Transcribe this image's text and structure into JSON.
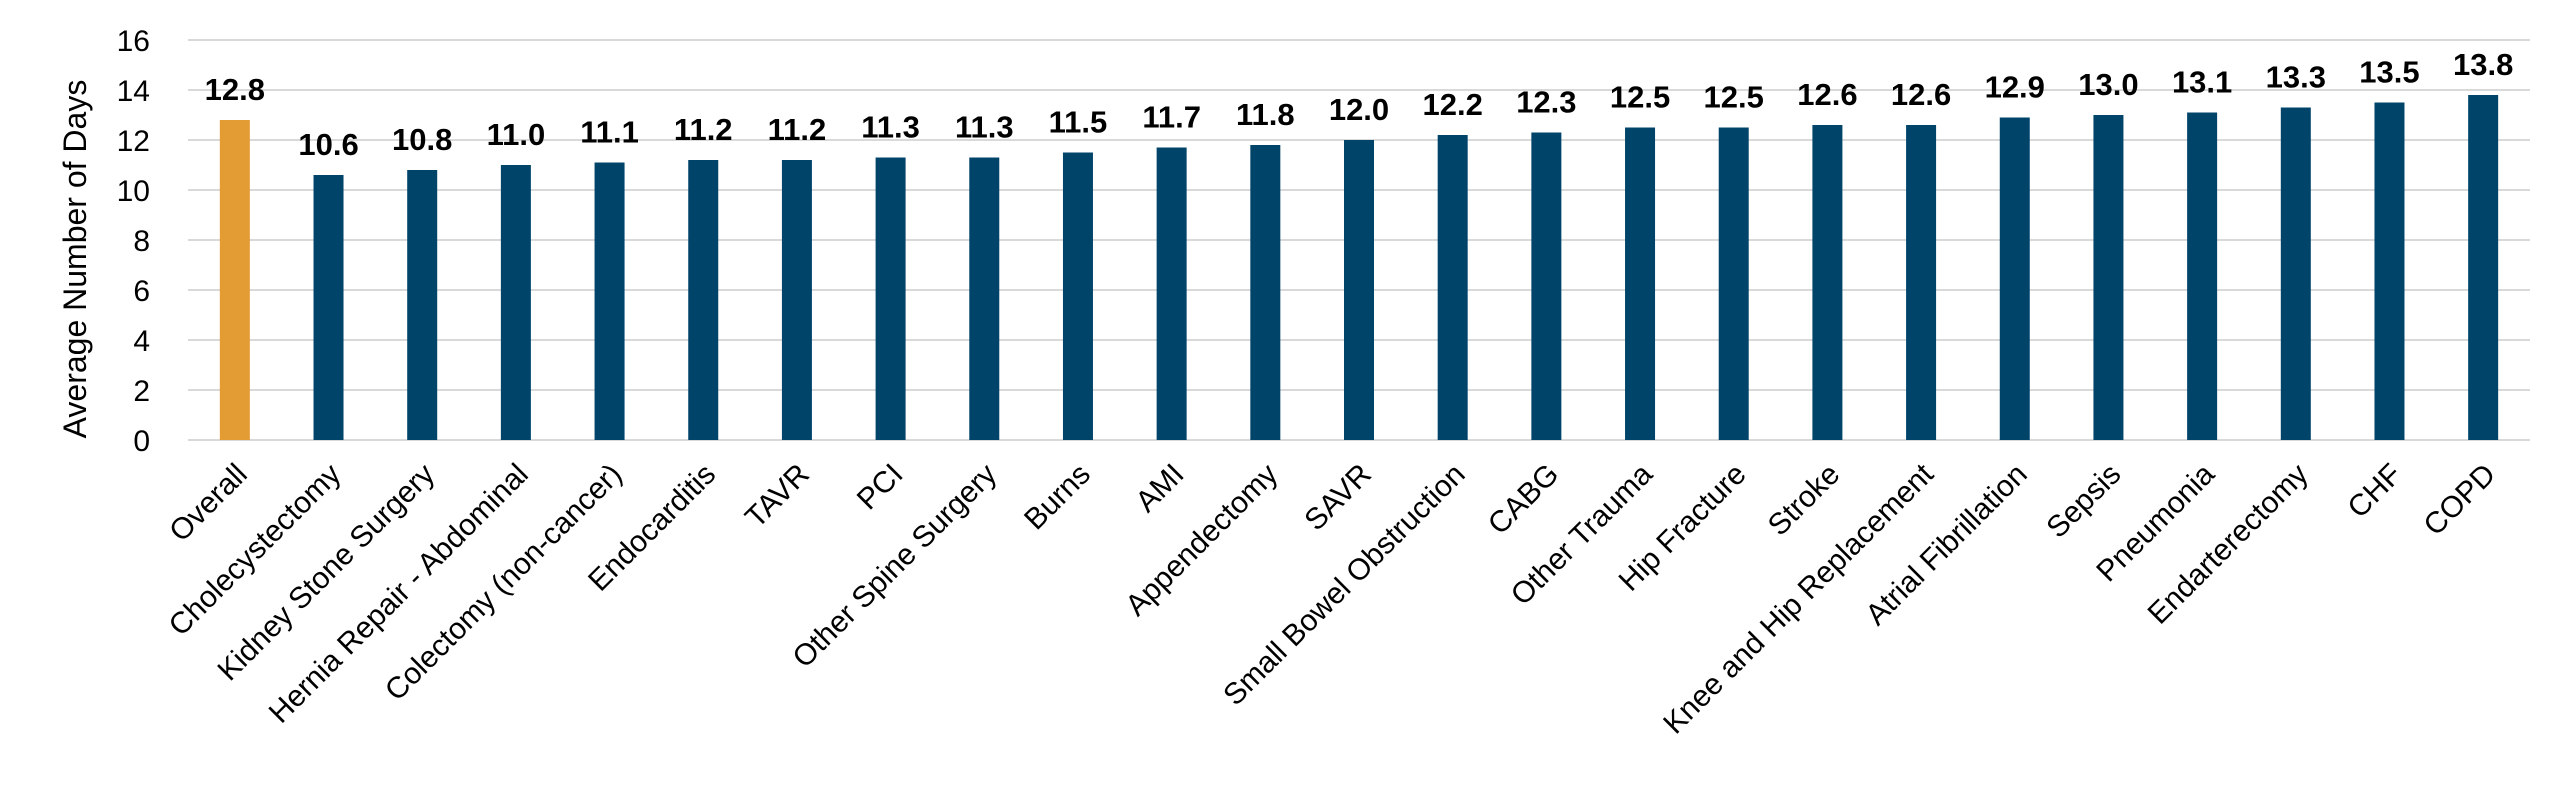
{
  "chart_data": {
    "type": "bar",
    "title": "",
    "xlabel": "",
    "ylabel": "Average Number of Days",
    "ylim": [
      0,
      16
    ],
    "yticks": [
      0,
      2,
      4,
      6,
      8,
      10,
      12,
      14,
      16
    ],
    "grid": true,
    "legend": "none",
    "categories": [
      "Overall",
      "Cholecystectomy",
      "Kidney Stone Surgery",
      "Hernia Repair - Abdominal",
      "Colectomy (non-cancer)",
      "Endocarditis",
      "TAVR",
      "PCI",
      "Other Spine Surgery",
      "Burns",
      "AMI",
      "Appendectomy",
      "SAVR",
      "Small Bowel Obstruction",
      "CABG",
      "Other Trauma",
      "Hip Fracture",
      "Stroke",
      "Knee and Hip Replacement",
      "Atrial Fibrillation",
      "Sepsis",
      "Pneumonia",
      "Endarterectomy",
      "CHF",
      "COPD"
    ],
    "values": [
      12.8,
      10.6,
      10.8,
      11.0,
      11.1,
      11.2,
      11.2,
      11.3,
      11.3,
      11.5,
      11.7,
      11.8,
      12.0,
      12.2,
      12.3,
      12.5,
      12.5,
      12.6,
      12.6,
      12.9,
      13.0,
      13.1,
      13.3,
      13.5,
      13.8
    ],
    "data_labels": [
      "12.8",
      "10.6",
      "10.8",
      "11.0",
      "11.1",
      "11.2",
      "11.2",
      "11.3",
      "11.3",
      "11.5",
      "11.7",
      "11.8",
      "12.0",
      "12.2",
      "12.3",
      "12.5",
      "12.5",
      "12.6",
      "12.6",
      "12.9",
      "13.0",
      "13.1",
      "13.3",
      "13.5",
      "13.8"
    ],
    "colors": {
      "highlight": "#E39B33",
      "default": "#00446A"
    },
    "highlight_index": 0
  }
}
